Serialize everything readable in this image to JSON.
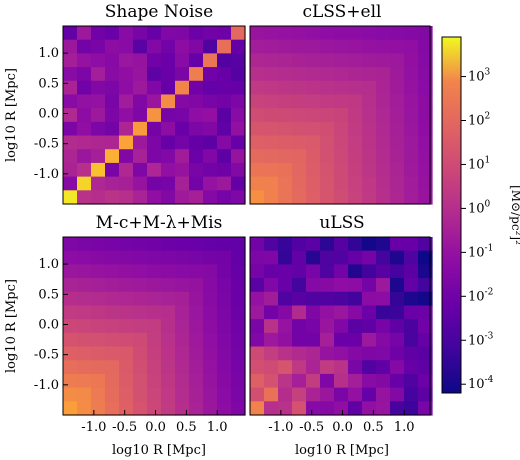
{
  "chart_data": {
    "type": "heatmap",
    "colorscale": "plasma",
    "panels": [
      {
        "title": "Shape Noise",
        "xlabel": "",
        "ylabel": "log10 R [Mpc]",
        "pattern": "diagonal",
        "diag_log10_start": 3.7,
        "diag_log10_end": 1.3,
        "offdiag_log10_low": -2.6,
        "offdiag_log10_high": -0.9
      },
      {
        "title": "cLSS+ell",
        "xlabel": "",
        "ylabel": "",
        "pattern": "smooth",
        "corner_log10": 2.4,
        "far_log10": -1.8
      },
      {
        "title": "M-c+M-λ+Mis",
        "xlabel": "log10 R [Mpc]",
        "ylabel": "log10 R [Mpc]",
        "pattern": "smooth",
        "corner_log10": 2.8,
        "far_log10": -2.6
      },
      {
        "title": "uLSS",
        "xlabel": "log10 R [Mpc]",
        "ylabel": "",
        "pattern": "noisy",
        "corner_log10": 1.2,
        "far_log10": -3.2
      }
    ],
    "grid_size": 13,
    "axis_range": [
      -1.5,
      1.45
    ],
    "xticks": [
      "-1.0",
      "-0.5",
      "0.0",
      "0.5",
      "1.0"
    ],
    "yticks": [
      "1.0",
      "0.5",
      "0.0",
      "-0.5",
      "-1.0"
    ],
    "colorbar": {
      "label": "[M⊙/pc²]²",
      "log10_min": -4.2,
      "log10_max": 3.9,
      "tick_exponents": [
        3,
        2,
        1,
        0,
        -1,
        -2,
        -3,
        -4
      ]
    }
  }
}
